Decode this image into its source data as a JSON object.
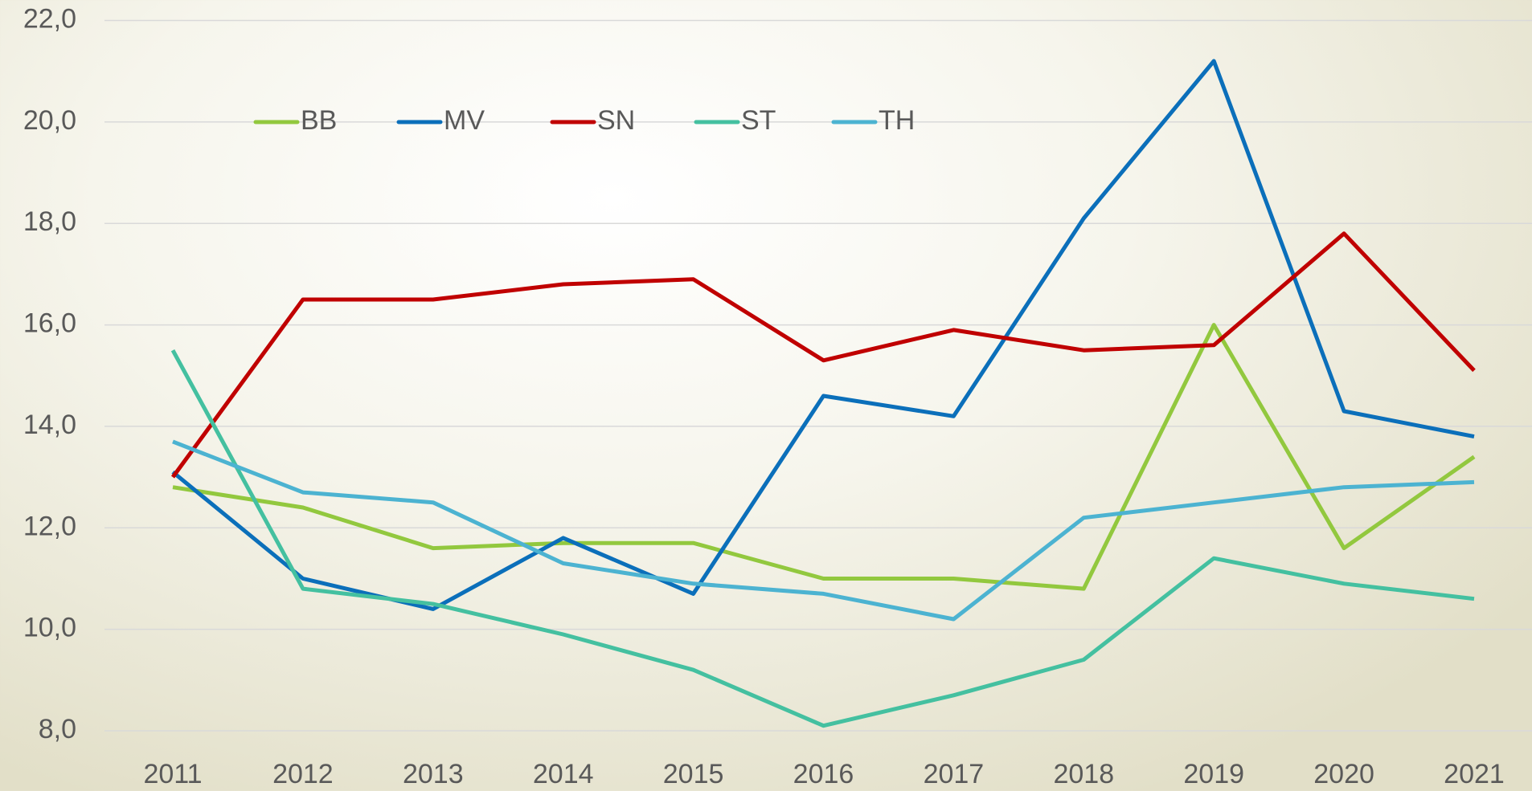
{
  "chart_data": {
    "type": "line",
    "categories": [
      "2011",
      "2012",
      "2013",
      "2014",
      "2015",
      "2016",
      "2017",
      "2018",
      "2019",
      "2020",
      "2021"
    ],
    "series": [
      {
        "name": "BB",
        "color": "#92c83e",
        "values": [
          12.8,
          12.4,
          11.6,
          11.7,
          11.7,
          11.0,
          11.0,
          10.8,
          16.0,
          11.6,
          13.4
        ]
      },
      {
        "name": "MV",
        "color": "#0b6fba",
        "values": [
          13.1,
          11.0,
          10.4,
          11.8,
          10.7,
          14.6,
          14.2,
          18.1,
          21.2,
          14.3,
          13.8
        ]
      },
      {
        "name": "SN",
        "color": "#c00000",
        "values": [
          13.0,
          16.5,
          16.5,
          16.8,
          16.9,
          15.3,
          15.9,
          15.5,
          15.6,
          17.8,
          15.1
        ]
      },
      {
        "name": "ST",
        "color": "#44c0a0",
        "values": [
          15.5,
          10.8,
          10.5,
          9.9,
          9.2,
          8.1,
          8.7,
          9.4,
          11.4,
          10.9,
          10.6
        ]
      },
      {
        "name": "TH",
        "color": "#4cb3d1",
        "values": [
          13.7,
          12.7,
          12.5,
          11.3,
          10.9,
          10.7,
          10.2,
          12.2,
          12.5,
          12.8,
          12.9
        ]
      }
    ],
    "ylim": [
      8,
      22
    ],
    "yticks": [
      {
        "value": 8,
        "label": "8,0"
      },
      {
        "value": 10,
        "label": "10,0"
      },
      {
        "value": 12,
        "label": "12,0"
      },
      {
        "value": 14,
        "label": "14,0"
      },
      {
        "value": 16,
        "label": "16,0"
      },
      {
        "value": 18,
        "label": "18,0"
      },
      {
        "value": 20,
        "label": "20,0"
      },
      {
        "value": 22,
        "label": "22,0"
      }
    ],
    "grid": true,
    "legend": "top-left"
  }
}
